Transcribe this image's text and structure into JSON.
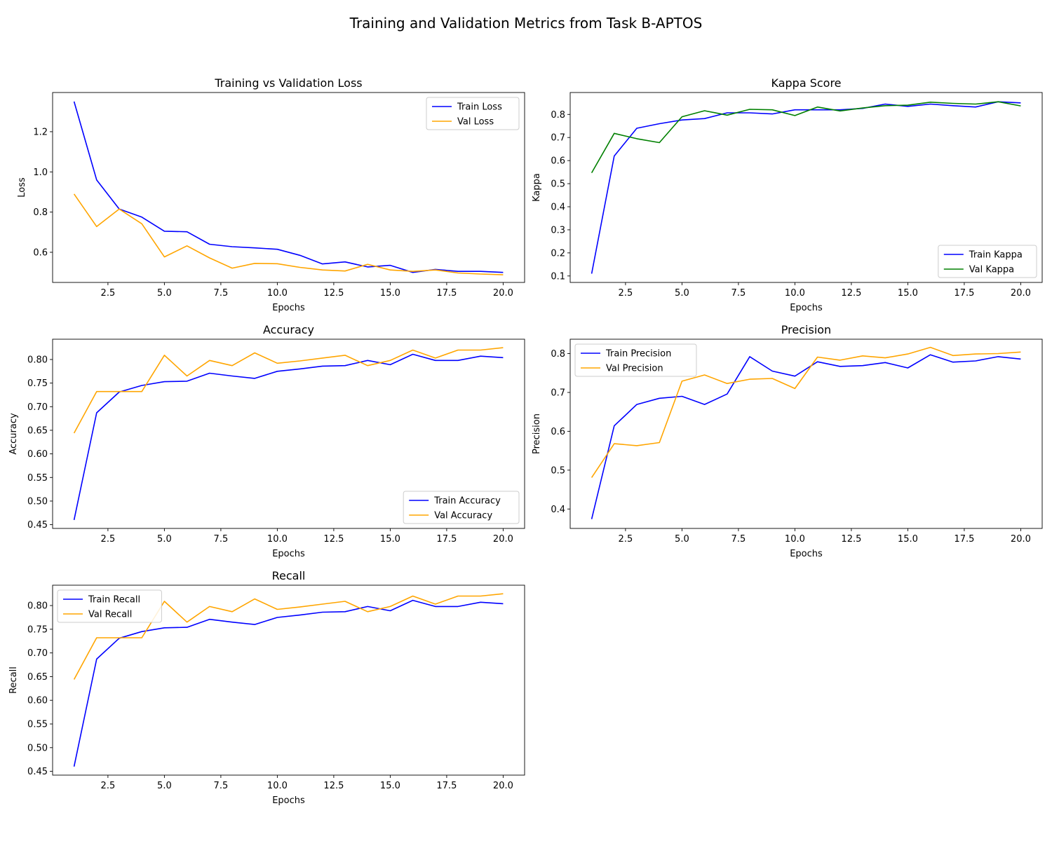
{
  "figure": {
    "title": "Training and Validation Metrics from Task B-APTOS"
  },
  "chart_data": [
    {
      "type": "line",
      "title": "Training vs Validation Loss",
      "xlabel": "Epochs",
      "ylabel": "Loss",
      "x": [
        1,
        2,
        3,
        4,
        5,
        6,
        7,
        8,
        9,
        10,
        11,
        12,
        13,
        14,
        15,
        16,
        17,
        18,
        19,
        20
      ],
      "xlim": [
        0.05,
        20.95
      ],
      "ylim": [
        0.45,
        1.395
      ],
      "xticks": [
        2.5,
        5.0,
        7.5,
        10.0,
        12.5,
        15.0,
        17.5,
        20.0
      ],
      "yticks": [
        0.6,
        0.8,
        1.0,
        1.2
      ],
      "legend": "top-right",
      "grid": false,
      "series": [
        {
          "name": "Train Loss",
          "color": "#0000ff",
          "values": [
            1.35,
            0.96,
            0.815,
            0.775,
            0.705,
            0.702,
            0.64,
            0.628,
            0.622,
            0.615,
            0.585,
            0.542,
            0.552,
            0.527,
            0.535,
            0.5,
            0.515,
            0.505,
            0.505,
            0.5
          ]
        },
        {
          "name": "Val Loss",
          "color": "#ffa500",
          "values": [
            0.89,
            0.728,
            0.815,
            0.742,
            0.577,
            0.632,
            0.572,
            0.521,
            0.545,
            0.543,
            0.525,
            0.512,
            0.507,
            0.54,
            0.512,
            0.505,
            0.512,
            0.497,
            0.492,
            0.488
          ]
        }
      ]
    },
    {
      "type": "line",
      "title": "Kappa Score",
      "xlabel": "Epochs",
      "ylabel": "Kappa",
      "x": [
        1,
        2,
        3,
        4,
        5,
        6,
        7,
        8,
        9,
        10,
        11,
        12,
        13,
        14,
        15,
        16,
        17,
        18,
        19,
        20
      ],
      "xlim": [
        0.05,
        20.95
      ],
      "ylim": [
        0.072,
        0.895
      ],
      "xticks": [
        2.5,
        5.0,
        7.5,
        10.0,
        12.5,
        15.0,
        17.5,
        20.0
      ],
      "yticks": [
        0.1,
        0.2,
        0.3,
        0.4,
        0.5,
        0.6,
        0.7,
        0.8
      ],
      "legend": "bottom-right",
      "grid": false,
      "series": [
        {
          "name": "Train Kappa",
          "color": "#0000ff",
          "values": [
            0.11,
            0.62,
            0.74,
            0.76,
            0.776,
            0.782,
            0.807,
            0.807,
            0.802,
            0.82,
            0.82,
            0.82,
            0.826,
            0.845,
            0.835,
            0.845,
            0.838,
            0.832,
            0.855,
            0.85
          ]
        },
        {
          "name": "Val Kappa",
          "color": "#008000",
          "values": [
            0.547,
            0.718,
            0.695,
            0.678,
            0.79,
            0.816,
            0.797,
            0.822,
            0.82,
            0.795,
            0.832,
            0.815,
            0.828,
            0.838,
            0.84,
            0.853,
            0.848,
            0.845,
            0.855,
            0.837
          ]
        }
      ]
    },
    {
      "type": "line",
      "title": "Accuracy",
      "xlabel": "Epochs",
      "ylabel": "Accuracy",
      "x": [
        1,
        2,
        3,
        4,
        5,
        6,
        7,
        8,
        9,
        10,
        11,
        12,
        13,
        14,
        15,
        16,
        17,
        18,
        19,
        20
      ],
      "xlim": [
        0.05,
        20.95
      ],
      "ylim": [
        0.442,
        0.843
      ],
      "xticks": [
        2.5,
        5.0,
        7.5,
        10.0,
        12.5,
        15.0,
        17.5,
        20.0
      ],
      "yticks": [
        0.45,
        0.5,
        0.55,
        0.6,
        0.65,
        0.7,
        0.75,
        0.8
      ],
      "legend": "bottom-right",
      "grid": false,
      "series": [
        {
          "name": "Train Accuracy",
          "color": "#0000ff",
          "values": [
            0.46,
            0.687,
            0.731,
            0.745,
            0.753,
            0.754,
            0.771,
            0.765,
            0.76,
            0.775,
            0.78,
            0.786,
            0.787,
            0.798,
            0.789,
            0.811,
            0.798,
            0.798,
            0.807,
            0.804
          ]
        },
        {
          "name": "Val Accuracy",
          "color": "#ffa500",
          "values": [
            0.644,
            0.732,
            0.732,
            0.732,
            0.809,
            0.765,
            0.798,
            0.787,
            0.814,
            0.792,
            0.797,
            0.803,
            0.809,
            0.787,
            0.798,
            0.82,
            0.803,
            0.82,
            0.82,
            0.825
          ]
        }
      ]
    },
    {
      "type": "line",
      "title": "Precision",
      "xlabel": "Epochs",
      "ylabel": "Precision",
      "x": [
        1,
        2,
        3,
        4,
        5,
        6,
        7,
        8,
        9,
        10,
        11,
        12,
        13,
        14,
        15,
        16,
        17,
        18,
        19,
        20
      ],
      "xlim": [
        0.05,
        20.95
      ],
      "ylim": [
        0.35,
        0.837
      ],
      "xticks": [
        2.5,
        5.0,
        7.5,
        10.0,
        12.5,
        15.0,
        17.5,
        20.0
      ],
      "yticks": [
        0.4,
        0.5,
        0.6,
        0.7,
        0.8
      ],
      "legend": "top-left",
      "grid": false,
      "series": [
        {
          "name": "Train Precision",
          "color": "#0000ff",
          "values": [
            0.374,
            0.614,
            0.669,
            0.685,
            0.69,
            0.669,
            0.696,
            0.792,
            0.755,
            0.742,
            0.779,
            0.767,
            0.769,
            0.777,
            0.763,
            0.797,
            0.778,
            0.781,
            0.792,
            0.786
          ]
        },
        {
          "name": "Val Precision",
          "color": "#ffa500",
          "values": [
            0.481,
            0.568,
            0.563,
            0.571,
            0.729,
            0.745,
            0.723,
            0.734,
            0.736,
            0.71,
            0.791,
            0.783,
            0.794,
            0.789,
            0.799,
            0.816,
            0.795,
            0.799,
            0.8,
            0.804
          ]
        }
      ]
    },
    {
      "type": "line",
      "title": "Recall",
      "xlabel": "Epochs",
      "ylabel": "Recall",
      "x": [
        1,
        2,
        3,
        4,
        5,
        6,
        7,
        8,
        9,
        10,
        11,
        12,
        13,
        14,
        15,
        16,
        17,
        18,
        19,
        20
      ],
      "xlim": [
        0.05,
        20.95
      ],
      "ylim": [
        0.442,
        0.843
      ],
      "xticks": [
        2.5,
        5.0,
        7.5,
        10.0,
        12.5,
        15.0,
        17.5,
        20.0
      ],
      "yticks": [
        0.45,
        0.5,
        0.55,
        0.6,
        0.65,
        0.7,
        0.75,
        0.8
      ],
      "legend": "top-left",
      "grid": false,
      "series": [
        {
          "name": "Train Recall",
          "color": "#0000ff",
          "values": [
            0.46,
            0.687,
            0.731,
            0.745,
            0.753,
            0.754,
            0.771,
            0.765,
            0.76,
            0.775,
            0.78,
            0.786,
            0.787,
            0.798,
            0.789,
            0.811,
            0.798,
            0.798,
            0.807,
            0.804
          ]
        },
        {
          "name": "Val Recall",
          "color": "#ffa500",
          "values": [
            0.644,
            0.732,
            0.732,
            0.732,
            0.809,
            0.765,
            0.798,
            0.787,
            0.814,
            0.792,
            0.797,
            0.803,
            0.809,
            0.787,
            0.798,
            0.82,
            0.803,
            0.82,
            0.82,
            0.825
          ]
        }
      ]
    }
  ]
}
